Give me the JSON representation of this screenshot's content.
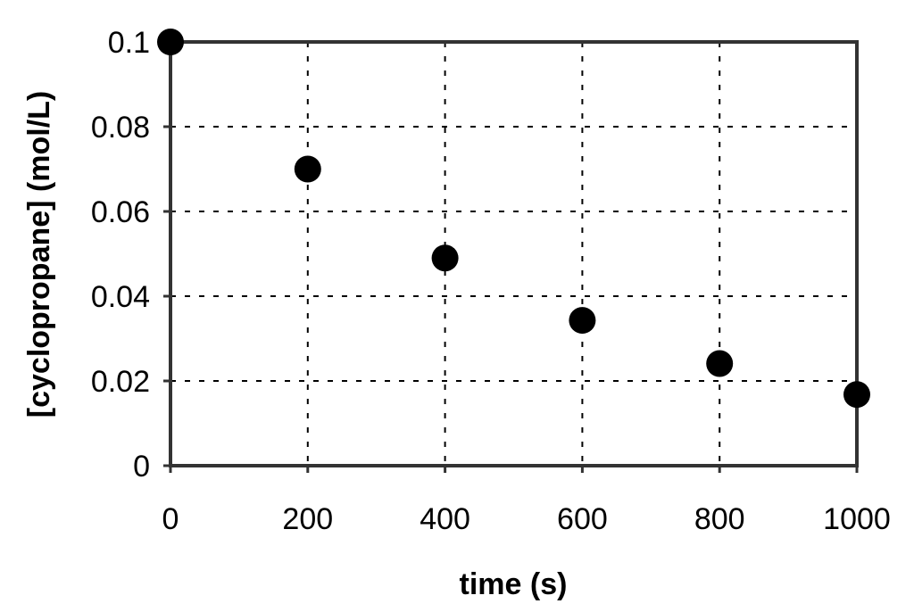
{
  "chart_data": {
    "type": "scatter",
    "title": "",
    "xlabel": "time (s)",
    "ylabel": "[cyclopropane] (mol/L)",
    "xlim": [
      0,
      1000
    ],
    "ylim": [
      0,
      0.1
    ],
    "x_ticks": [
      0,
      200,
      400,
      600,
      800,
      1000
    ],
    "x_tick_labels": [
      "0",
      "200",
      "400",
      "600",
      "800",
      "1000"
    ],
    "y_ticks": [
      0,
      0.02,
      0.04,
      0.06,
      0.08,
      0.1
    ],
    "y_tick_labels": [
      "0",
      "0.02",
      "0.04",
      "0.06",
      "0.08",
      "0.1"
    ],
    "grid": true,
    "legend": "none",
    "series": [
      {
        "x": [
          0,
          200,
          400,
          600,
          800,
          1000
        ],
        "y": [
          0.1,
          0.07,
          0.049,
          0.0343,
          0.0241,
          0.0168
        ]
      }
    ],
    "marker_color": "#000000"
  }
}
